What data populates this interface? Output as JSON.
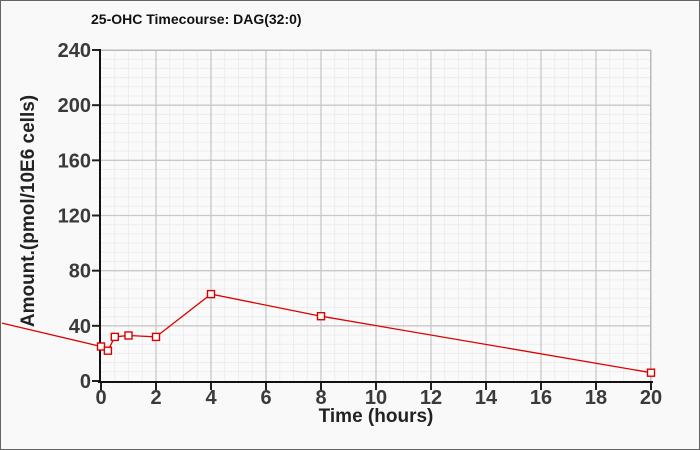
{
  "chart_data": {
    "type": "line",
    "title": "25-OHC Timecourse: DAG(32:0)",
    "xlabel": "Time (hours)",
    "ylabel": "Amount.(pmol/10E6 cells)",
    "x": [
      0,
      0.25,
      0.5,
      1,
      2,
      4,
      8,
      20
    ],
    "y": [
      25,
      22,
      32,
      33,
      32,
      63,
      47,
      6
    ],
    "xlim": [
      0,
      20
    ],
    "ylim": [
      0,
      240
    ],
    "xticks": [
      0,
      2,
      4,
      6,
      8,
      10,
      12,
      14,
      16,
      18,
      20
    ],
    "yticks": [
      0,
      40,
      80,
      120,
      160,
      200,
      240
    ],
    "minor_per_major_x": 4,
    "minor_per_major_y": 6,
    "grid": true,
    "legend": false,
    "marker": "open-square",
    "line_entry_from_left": {
      "t": -3.6,
      "value": 42
    }
  },
  "colors": {
    "figure_background": "#f9f9f9",
    "plot_background": "#fafafa",
    "figure_border": "#646464",
    "grid_minor": "#ededed",
    "grid_major": "#c8c8c8",
    "plot_border": "#b9b9b9",
    "axis_line": "#111111",
    "tick_mark": "#222222",
    "tick_label": "#3a3a3a",
    "axis_label": "#222222",
    "title": "#111111",
    "series_line": "#dd0000",
    "marker_fill": "#ffffff"
  }
}
